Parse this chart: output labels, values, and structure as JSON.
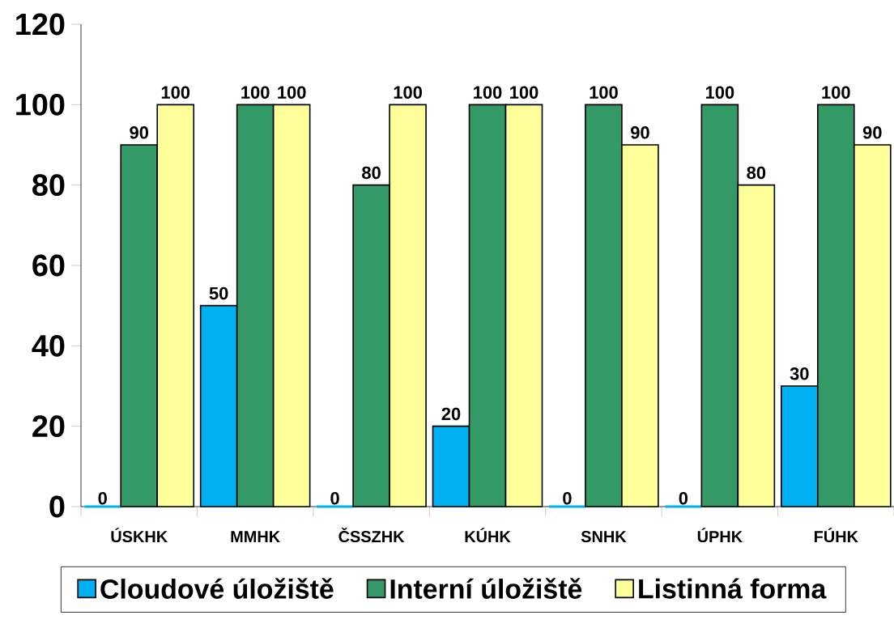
{
  "chart_data": {
    "type": "bar",
    "categories": [
      "ÚSKHK",
      "MMHK",
      "ČSSZHK",
      "KÚHK",
      "SNHK",
      "ÚPHK",
      "FÚHK"
    ],
    "series": [
      {
        "name": "Cloudové úložiště",
        "color": "#00b0f0",
        "values": [
          0,
          50,
          0,
          20,
          0,
          0,
          30
        ]
      },
      {
        "name": "Interní úložiště",
        "color": "#339966",
        "values": [
          90,
          100,
          80,
          100,
          100,
          100,
          100
        ]
      },
      {
        "name": "Listinná forma",
        "color": "#ffff99",
        "values": [
          100,
          100,
          100,
          100,
          90,
          80,
          90
        ]
      }
    ],
    "ylim": [
      0,
      120
    ],
    "yticks": [
      0,
      20,
      40,
      60,
      80,
      100,
      120
    ],
    "grid": false,
    "legend": "bottom",
    "data_labels": true
  }
}
